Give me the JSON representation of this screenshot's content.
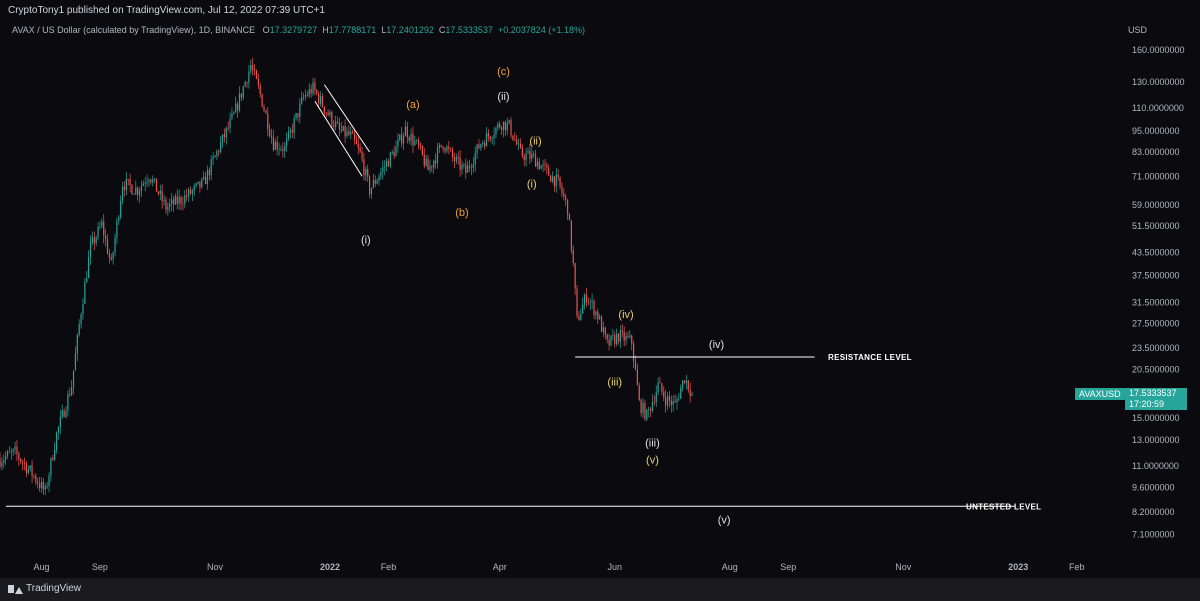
{
  "header": {
    "publish_text": "CryptoTony1 published on TradingView.com, Jul 12, 2022 07:39 UTC+1",
    "symbol_desc": "AVAX / US Dollar (calculated by TradingView), 1D, BINANCE",
    "open_label": "O",
    "open_value": "17.3279727",
    "high_label": "H",
    "high_value": "17.7788171",
    "low_label": "L",
    "low_value": "17.2401292",
    "close_label": "C",
    "close_value": "17.5333537",
    "change_value": "+0.2037824 (+1.18%)"
  },
  "price_axis": {
    "currency": "USD",
    "ticks": [
      "160.0000000",
      "130.0000000",
      "110.0000000",
      "95.0000000",
      "83.0000000",
      "71.0000000",
      "59.0000000",
      "51.5000000",
      "43.5000000",
      "37.5000000",
      "31.5000000",
      "27.5000000",
      "23.5000000",
      "20.5000000",
      "15.0000000",
      "13.0000000",
      "11.0000000",
      "9.6000000",
      "8.2000000",
      "7.1000000"
    ]
  },
  "current_price": {
    "symbol": "AVAXUSD",
    "price": "17.5333537",
    "countdown": "17:20:59"
  },
  "time_axis": {
    "ticks": [
      "Aug",
      "Sep",
      "Nov",
      "2022",
      "Feb",
      "Apr",
      "Jun",
      "Aug",
      "Sep",
      "Nov",
      "2023",
      "Feb"
    ]
  },
  "annotations": {
    "resistance_label": "RESISTANCE LEVEL",
    "untested_label": "UNTESTED LEVEL",
    "wave_labels": [
      "(c)",
      "(ii)",
      "(a)",
      "(ii)",
      "(i)",
      "(b)",
      "(i)",
      "(iv)",
      "(iii)",
      "(iv)",
      "(iii)",
      "(v)",
      "(v)"
    ]
  },
  "chart_data": {
    "type": "candlestick",
    "title": "AVAX / US Dollar (calculated by TradingView), 1D, BINANCE",
    "y_scale": "log",
    "ylim": [
      6.5,
      175
    ],
    "x_range": [
      "2021-07-10",
      "2023-02-25"
    ],
    "anchor_closes": [
      {
        "date": "2021-07-10",
        "close": 11.5
      },
      {
        "date": "2021-07-18",
        "close": 12.0
      },
      {
        "date": "2021-07-27",
        "close": 10.5
      },
      {
        "date": "2021-08-03",
        "close": 9.3
      },
      {
        "date": "2021-08-09",
        "close": 13.5
      },
      {
        "date": "2021-08-17",
        "close": 18.5
      },
      {
        "date": "2021-08-22",
        "close": 30.0
      },
      {
        "date": "2021-08-27",
        "close": 45.0
      },
      {
        "date": "2021-09-02",
        "close": 52.0
      },
      {
        "date": "2021-09-07",
        "close": 40.0
      },
      {
        "date": "2021-09-13",
        "close": 68.0
      },
      {
        "date": "2021-09-21",
        "close": 65.0
      },
      {
        "date": "2021-09-27",
        "close": 72.0
      },
      {
        "date": "2021-10-06",
        "close": 58.0
      },
      {
        "date": "2021-10-16",
        "close": 62.0
      },
      {
        "date": "2021-10-26",
        "close": 68.0
      },
      {
        "date": "2021-11-03",
        "close": 85.0
      },
      {
        "date": "2021-11-11",
        "close": 105.0
      },
      {
        "date": "2021-11-20",
        "close": 145.0
      },
      {
        "date": "2021-11-25",
        "close": 120.0
      },
      {
        "date": "2021-12-02",
        "close": 88.0
      },
      {
        "date": "2021-12-08",
        "close": 85.0
      },
      {
        "date": "2021-12-18",
        "close": 118.0
      },
      {
        "date": "2021-12-23",
        "close": 125.0
      },
      {
        "date": "2021-12-30",
        "close": 108.0
      },
      {
        "date": "2022-01-06",
        "close": 95.0
      },
      {
        "date": "2022-01-12",
        "close": 92.0
      },
      {
        "date": "2022-01-17",
        "close": 82.0
      },
      {
        "date": "2022-01-22",
        "close": 65.0
      },
      {
        "date": "2022-01-28",
        "close": 73.0
      },
      {
        "date": "2022-02-05",
        "close": 85.0
      },
      {
        "date": "2022-02-10",
        "close": 96.0
      },
      {
        "date": "2022-02-17",
        "close": 85.0
      },
      {
        "date": "2022-02-22",
        "close": 74.0
      },
      {
        "date": "2022-03-02",
        "close": 88.0
      },
      {
        "date": "2022-03-07",
        "close": 80.0
      },
      {
        "date": "2022-03-14",
        "close": 73.0
      },
      {
        "date": "2022-03-22",
        "close": 88.0
      },
      {
        "date": "2022-04-02",
        "close": 100.0
      },
      {
        "date": "2022-04-06",
        "close": 98.0
      },
      {
        "date": "2022-04-12",
        "close": 82.0
      },
      {
        "date": "2022-04-19",
        "close": 80.0
      },
      {
        "date": "2022-04-26",
        "close": 73.0
      },
      {
        "date": "2022-05-02",
        "close": 68.0
      },
      {
        "date": "2022-05-07",
        "close": 58.0
      },
      {
        "date": "2022-05-10",
        "close": 40.0
      },
      {
        "date": "2022-05-12",
        "close": 28.0
      },
      {
        "date": "2022-05-17",
        "close": 33.0
      },
      {
        "date": "2022-05-23",
        "close": 29.0
      },
      {
        "date": "2022-05-28",
        "close": 24.0
      },
      {
        "date": "2022-06-03",
        "close": 25.5
      },
      {
        "date": "2022-06-10",
        "close": 24.5
      },
      {
        "date": "2022-06-14",
        "close": 16.5
      },
      {
        "date": "2022-06-18",
        "close": 15.2
      },
      {
        "date": "2022-06-24",
        "close": 18.5
      },
      {
        "date": "2022-06-28",
        "close": 17.0
      },
      {
        "date": "2022-07-03",
        "close": 16.3
      },
      {
        "date": "2022-07-08",
        "close": 19.5
      },
      {
        "date": "2022-07-12",
        "close": 17.53
      }
    ],
    "last_candle": {
      "date": "2022-07-12",
      "open": 17.3279727,
      "high": 17.7788171,
      "low": 17.2401292,
      "close": 17.5333537
    },
    "horizontal_levels": [
      {
        "label": "RESISTANCE LEVEL",
        "price": 22.2
      },
      {
        "label": "UNTESTED LEVEL",
        "price": 8.5
      }
    ],
    "trendlines": [
      {
        "from": {
          "date": "2021-12-29",
          "price": 128
        },
        "to": {
          "date": "2022-01-22",
          "price": 83
        }
      },
      {
        "from": {
          "date": "2021-12-24",
          "price": 115
        },
        "to": {
          "date": "2022-01-18",
          "price": 71
        }
      }
    ],
    "wave_annotations": [
      {
        "text": "(c)",
        "date": "2022-04-03",
        "price": 136,
        "color": "#f0a030"
      },
      {
        "text": "(ii)",
        "date": "2022-04-03",
        "price": 116,
        "color": "#e0e0e0"
      },
      {
        "text": "(a)",
        "date": "2022-02-14",
        "price": 110,
        "color": "#f0a030"
      },
      {
        "text": "(ii)",
        "date": "2022-04-20",
        "price": 87,
        "color": "#e8d070"
      },
      {
        "text": "(i)",
        "date": "2022-04-18",
        "price": 66,
        "color": "#e8d070"
      },
      {
        "text": "(b)",
        "date": "2022-03-12",
        "price": 55,
        "color": "#f0a030"
      },
      {
        "text": "(i)",
        "date": "2022-01-20",
        "price": 46,
        "color": "#e0e0e0"
      },
      {
        "text": "(iv)",
        "date": "2022-06-07",
        "price": 28.5,
        "color": "#e8d070"
      },
      {
        "text": "(iii)",
        "date": "2022-06-01",
        "price": 18.5,
        "color": "#e8d070"
      },
      {
        "text": "(iv)",
        "date": "2022-07-25",
        "price": 23.5,
        "color": "#e0e0e0"
      },
      {
        "text": "(iii)",
        "date": "2022-06-21",
        "price": 12.5,
        "color": "#e0e0e0"
      },
      {
        "text": "(v)",
        "date": "2022-06-21",
        "price": 11.2,
        "color": "#e8d070"
      },
      {
        "text": "(v)",
        "date": "2022-07-29",
        "price": 7.6,
        "color": "#e0e0e0"
      }
    ],
    "colors": {
      "up": "#26a69a",
      "down": "#ef5350",
      "background": "#0b0b0f",
      "line": "#ffffff"
    }
  }
}
